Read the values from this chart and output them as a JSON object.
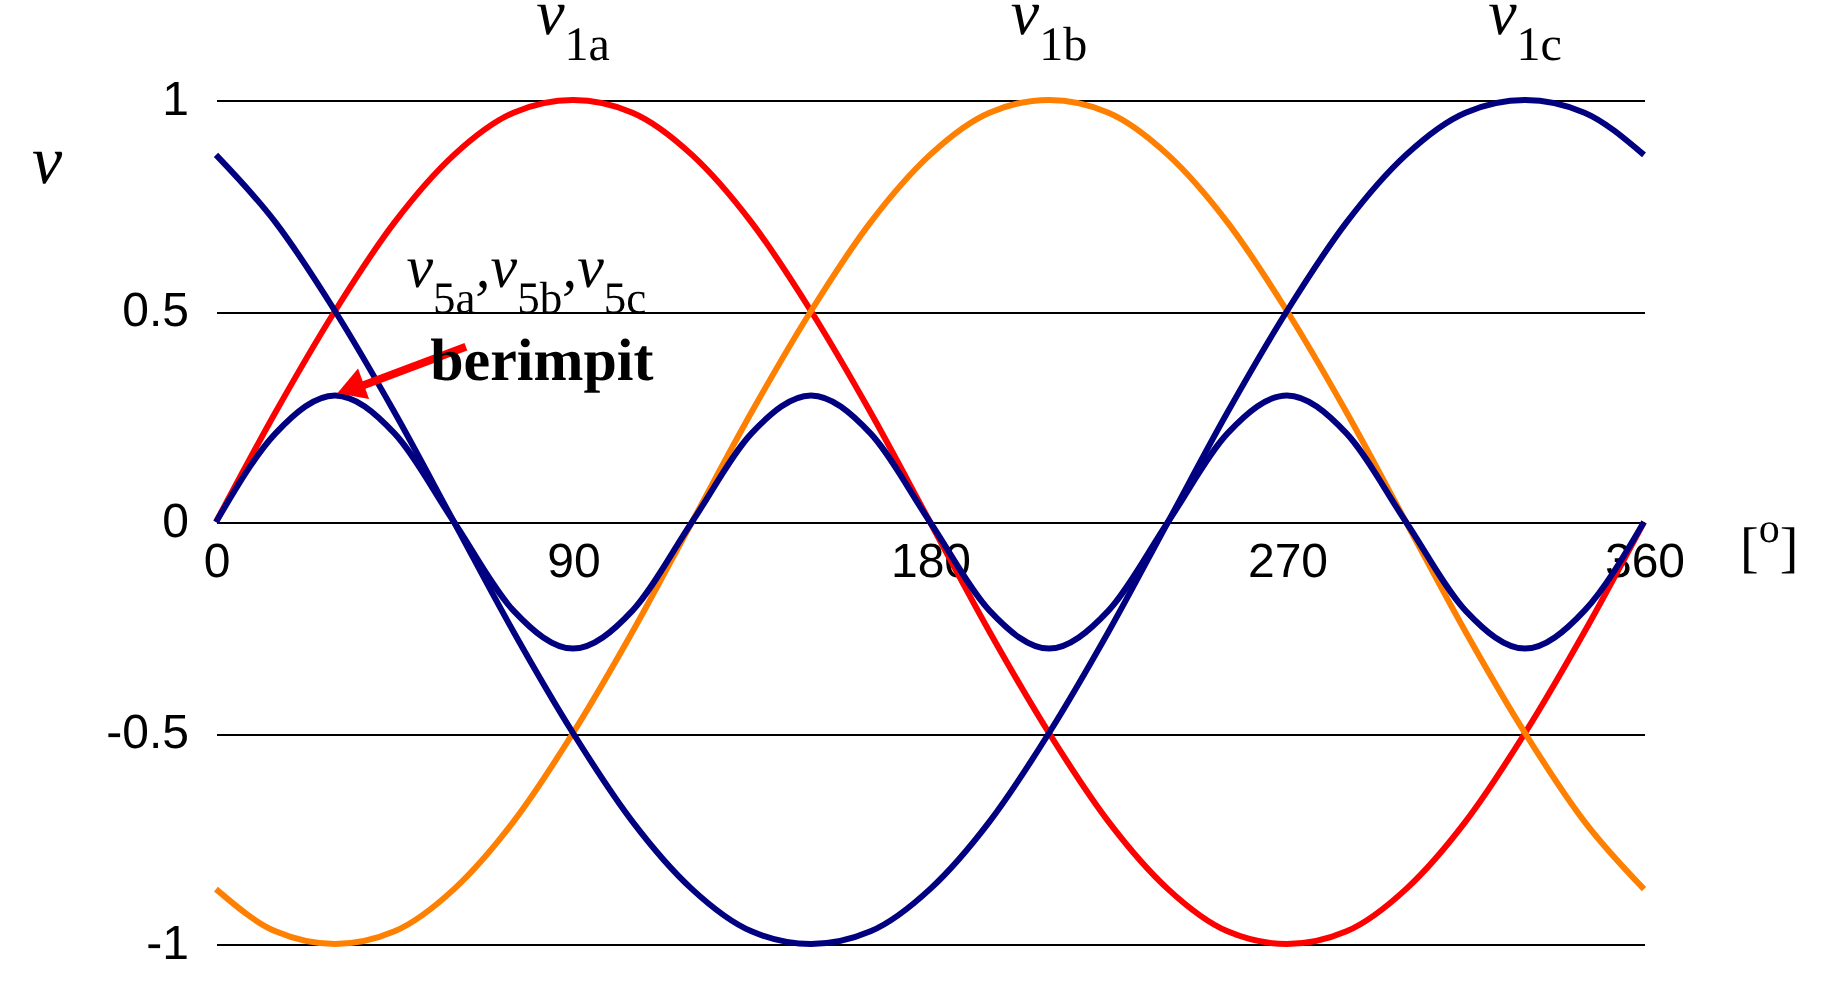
{
  "chart_data": {
    "type": "line",
    "xlabel": "[$^{o}$]",
    "ylabel": "v",
    "x": [
      0,
      15,
      30,
      45,
      60,
      75,
      90,
      105,
      120,
      135,
      150,
      165,
      180,
      195,
      210,
      225,
      240,
      255,
      270,
      285,
      300,
      315,
      330,
      345,
      360
    ],
    "series": [
      {
        "name": "v$_{1a}$",
        "color": "#ff0000",
        "values": [
          0,
          0.26,
          0.5,
          0.71,
          0.87,
          0.97,
          1,
          0.97,
          0.87,
          0.71,
          0.5,
          0.26,
          0,
          -0.26,
          -0.5,
          -0.71,
          -0.87,
          -0.97,
          -1,
          -0.97,
          -0.87,
          -0.71,
          -0.5,
          -0.26,
          0
        ]
      },
      {
        "name": "v$_{1b}$",
        "color": "#ff8000",
        "values": [
          -0.87,
          -0.97,
          -1,
          -0.97,
          -0.87,
          -0.71,
          -0.5,
          -0.26,
          0,
          0.26,
          0.5,
          0.71,
          0.87,
          0.97,
          1,
          0.97,
          0.87,
          0.71,
          0.5,
          0.26,
          0,
          -0.26,
          -0.5,
          -0.71,
          -0.87
        ]
      },
      {
        "name": "v$_{1c}$",
        "color": "#000080",
        "values": [
          0.87,
          0.71,
          0.5,
          0.26,
          0,
          -0.26,
          -0.5,
          -0.71,
          -0.87,
          -0.97,
          -1,
          -0.97,
          -0.87,
          -0.71,
          -0.5,
          -0.26,
          0,
          0.26,
          0.5,
          0.71,
          0.87,
          0.97,
          1,
          0.97,
          0.87
        ]
      },
      {
        "color": "#000080",
        "values": [
          0,
          0.21,
          0.3,
          0.21,
          0,
          -0.21,
          -0.3,
          -0.21,
          0,
          0.21,
          0.3,
          0.21,
          0,
          -0.21,
          -0.3,
          -0.21,
          0,
          0.21,
          0.3,
          0.21,
          0,
          -0.21,
          -0.3,
          -0.21,
          0
        ]
      }
    ],
    "xlim": [
      0,
      360
    ],
    "xticks": [
      0,
      90,
      180,
      270,
      360
    ],
    "ylim": [
      -1,
      1
    ],
    "yticks": [
      -1,
      -0.5,
      0,
      0.5,
      1
    ],
    "grid": "y",
    "annotations": [
      {
        "text": "v$_{5a}$,v$_{5b}$,v$_{5c}$",
        "x": 30,
        "y": 0.3
      },
      {
        "text": "berimpit",
        "x": 30,
        "y": 0.3
      }
    ]
  }
}
